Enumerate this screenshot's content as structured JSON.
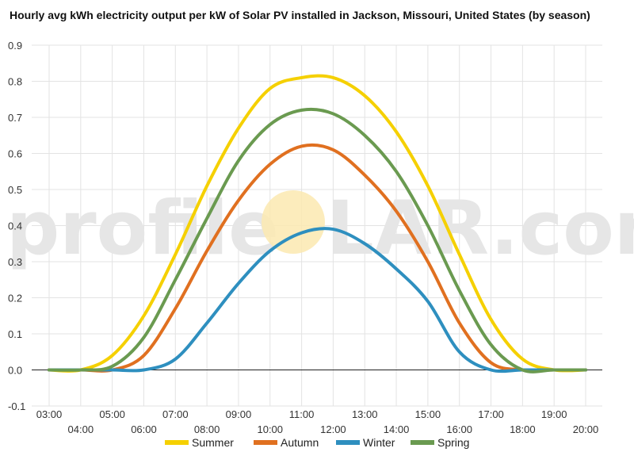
{
  "chart_data": {
    "type": "line",
    "title": "Hourly avg kWh electricity output per kW of Solar PV installed in Jackson, Missouri, United States (by season)",
    "xlabel": "",
    "ylabel": "",
    "x": [
      "03:00",
      "04:00",
      "05:00",
      "06:00",
      "07:00",
      "08:00",
      "09:00",
      "10:00",
      "11:00",
      "12:00",
      "13:00",
      "14:00",
      "15:00",
      "16:00",
      "17:00",
      "18:00",
      "19:00",
      "20:00"
    ],
    "ylim": [
      -0.1,
      0.9
    ],
    "yticks": [
      "-0.1",
      "0.0",
      "0.1",
      "0.2",
      "0.3",
      "0.4",
      "0.5",
      "0.6",
      "0.7",
      "0.8",
      "0.9"
    ],
    "grid": true,
    "legend_position": "bottom",
    "series": [
      {
        "name": "Summer",
        "color": "#f5d000",
        "values": [
          0.0,
          0.0,
          0.04,
          0.15,
          0.32,
          0.51,
          0.67,
          0.78,
          0.81,
          0.81,
          0.76,
          0.66,
          0.51,
          0.32,
          0.14,
          0.03,
          0.0,
          0.0
        ]
      },
      {
        "name": "Autumn",
        "color": "#e07020",
        "values": [
          0.0,
          0.0,
          0.0,
          0.04,
          0.17,
          0.33,
          0.47,
          0.57,
          0.62,
          0.61,
          0.54,
          0.44,
          0.3,
          0.13,
          0.02,
          0.0,
          0.0,
          0.0
        ]
      },
      {
        "name": "Winter",
        "color": "#2e8fbf",
        "values": [
          0.0,
          0.0,
          0.0,
          0.0,
          0.03,
          0.13,
          0.24,
          0.33,
          0.38,
          0.39,
          0.35,
          0.28,
          0.19,
          0.05,
          0.0,
          0.0,
          0.0,
          0.0
        ]
      },
      {
        "name": "Spring",
        "color": "#6a9a50",
        "values": [
          0.0,
          0.0,
          0.01,
          0.09,
          0.25,
          0.42,
          0.58,
          0.68,
          0.72,
          0.71,
          0.65,
          0.55,
          0.4,
          0.22,
          0.07,
          0.0,
          0.0,
          0.0
        ]
      }
    ]
  },
  "watermark": {
    "left": "profile",
    "right": "LAR.com"
  }
}
